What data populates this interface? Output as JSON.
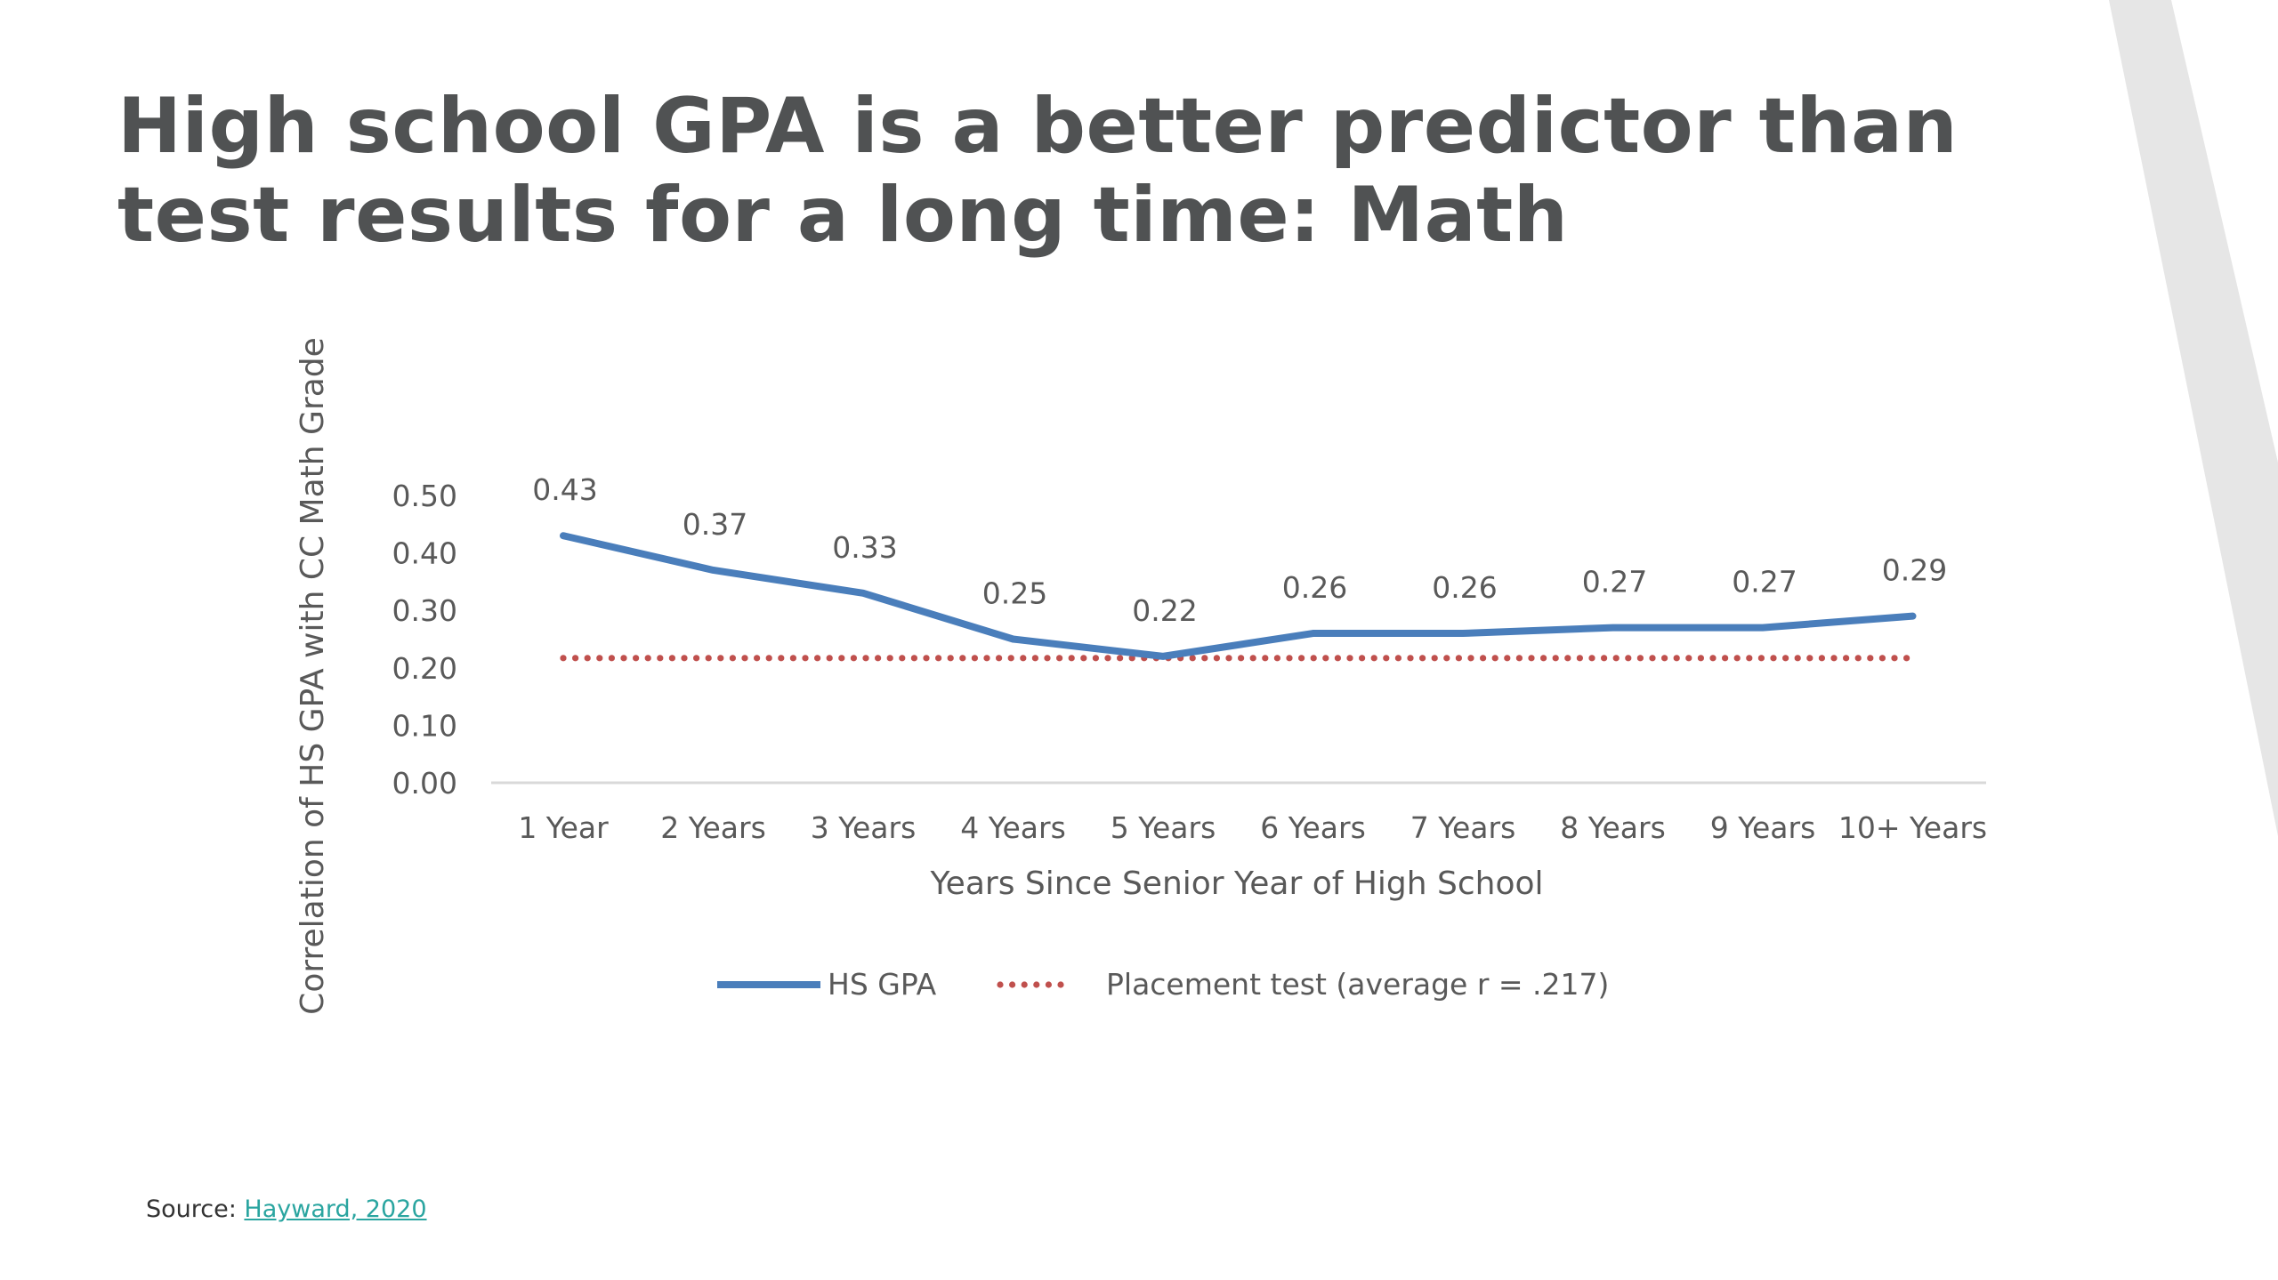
{
  "slide": {
    "title": "High school GPA is a better predictor than test results for a long time: Math",
    "source_prefix": "Source: ",
    "source_link": "Hayward, 2020"
  },
  "colors": {
    "hs_gpa": "#4a7ebb",
    "placement": "#c0504d",
    "title": "#505253",
    "text": "#595959",
    "axis": "#d9d9d9",
    "link": "#2aa5a0",
    "deco": "#e6e6e6"
  },
  "chart_data": {
    "type": "line",
    "title": "",
    "xlabel": "Years Since Senior Year of High School",
    "ylabel": "Correlation of HS GPA with CC Math Grade",
    "categories": [
      "1 Year",
      "2 Years",
      "3 Years",
      "4 Years",
      "5 Years",
      "6 Years",
      "7 Years",
      "8 Years",
      "9 Years",
      "10+ Years"
    ],
    "ylim": [
      0,
      0.5
    ],
    "yticks": [
      "0.00",
      "0.10",
      "0.20",
      "0.30",
      "0.40",
      "0.50"
    ],
    "grid": false,
    "legend_position": "bottom",
    "series": [
      {
        "name": "HS GPA",
        "style": "solid",
        "values": [
          0.43,
          0.37,
          0.33,
          0.25,
          0.22,
          0.26,
          0.26,
          0.27,
          0.27,
          0.29
        ],
        "labels": [
          "0.43",
          "0.37",
          "0.33",
          "0.25",
          "0.22",
          "0.26",
          "0.26",
          "0.27",
          "0.27",
          "0.29"
        ]
      },
      {
        "name": "Placement test (average r = .217)",
        "style": "dotted",
        "values": [
          0.217,
          0.217,
          0.217,
          0.217,
          0.217,
          0.217,
          0.217,
          0.217,
          0.217,
          0.217
        ]
      }
    ]
  }
}
